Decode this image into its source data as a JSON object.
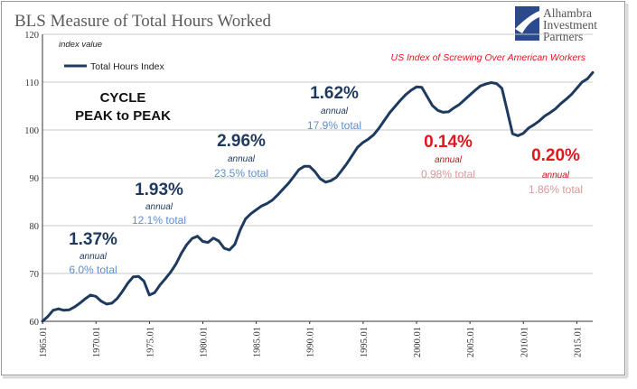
{
  "title": "BLS Measure of Total Hours Worked",
  "logo": {
    "line1": "Alhambra",
    "line2": "Investment",
    "line3": "Partners"
  },
  "subtitle_red": "US Index of Screwing Over American Workers",
  "cycle_label": {
    "line1": "CYCLE",
    "line2": "PEAK to PEAK"
  },
  "colors": {
    "line": "#1f3a5f",
    "blue": "#1f3a5f",
    "light_blue": "#5b8fd0",
    "red": "#e2161c",
    "pink": "#d99898",
    "grid": "#c8c8c8"
  },
  "annotations": [
    {
      "pct": "1.37%",
      "annual": "annual",
      "total": "6.0% total",
      "style": "blue"
    },
    {
      "pct": "1.93%",
      "annual": "annual",
      "total": "12.1% total",
      "style": "blue"
    },
    {
      "pct": "2.96%",
      "annual": "annual",
      "total": "23.5% total",
      "style": "blue"
    },
    {
      "pct": "1.62%",
      "annual": "annual",
      "total": "17.9% total",
      "style": "blue"
    },
    {
      "pct": "0.14%",
      "annual": "annual",
      "total": "0.98% total",
      "style": "red"
    },
    {
      "pct": "0.20%",
      "annual": "annual",
      "total": "1.86% total",
      "style": "red"
    }
  ],
  "chart_data": {
    "type": "line",
    "title": "BLS Measure of Total Hours Worked",
    "ylabel": "index value",
    "ylim": [
      60,
      120
    ],
    "yticks": [
      60,
      70,
      80,
      90,
      100,
      110,
      120
    ],
    "xlim": [
      1965.0,
      2016.5
    ],
    "xticks": [
      "1965.01",
      "1970.01",
      "1975.01",
      "1980.01",
      "1985.01",
      "1990.01",
      "1995.01",
      "2000.01",
      "2005.01",
      "2010.01",
      "2015.01"
    ],
    "grid": true,
    "legend_position": "top-left",
    "series": [
      {
        "name": "Total Hours Index",
        "x": [
          1965.0,
          1965.5,
          1966.0,
          1966.5,
          1967.0,
          1967.5,
          1968.0,
          1968.5,
          1969.0,
          1969.5,
          1970.0,
          1970.5,
          1971.0,
          1971.5,
          1972.0,
          1972.5,
          1973.0,
          1973.5,
          1974.0,
          1974.5,
          1975.0,
          1975.5,
          1976.0,
          1976.5,
          1977.0,
          1977.5,
          1978.0,
          1978.5,
          1979.0,
          1979.5,
          1980.0,
          1980.5,
          1981.0,
          1981.5,
          1982.0,
          1982.5,
          1983.0,
          1983.5,
          1984.0,
          1984.5,
          1985.0,
          1985.5,
          1986.0,
          1986.5,
          1987.0,
          1987.5,
          1988.0,
          1988.5,
          1989.0,
          1989.5,
          1990.0,
          1990.5,
          1991.0,
          1991.5,
          1992.0,
          1992.5,
          1993.0,
          1993.5,
          1994.0,
          1994.5,
          1995.0,
          1995.5,
          1996.0,
          1996.5,
          1997.0,
          1997.5,
          1998.0,
          1998.5,
          1999.0,
          1999.5,
          2000.0,
          2000.5,
          2001.0,
          2001.5,
          2002.0,
          2002.5,
          2003.0,
          2003.5,
          2004.0,
          2004.5,
          2005.0,
          2005.5,
          2006.0,
          2006.5,
          2007.0,
          2007.5,
          2008.0,
          2008.5,
          2009.0,
          2009.5,
          2010.0,
          2010.5,
          2011.0,
          2011.5,
          2012.0,
          2012.5,
          2013.0,
          2013.5,
          2014.0,
          2014.5,
          2015.0,
          2015.5,
          2016.0,
          2016.5
        ],
        "values": [
          60.0,
          61.0,
          62.3,
          62.6,
          62.3,
          62.4,
          63.0,
          63.8,
          64.7,
          65.5,
          65.2,
          64.2,
          63.6,
          63.8,
          64.8,
          66.3,
          68.0,
          69.3,
          69.4,
          68.4,
          65.5,
          66.0,
          67.6,
          68.9,
          70.3,
          72.0,
          74.2,
          76.0,
          77.3,
          77.8,
          76.7,
          76.5,
          77.4,
          76.8,
          75.3,
          74.9,
          76.1,
          79.1,
          81.4,
          82.5,
          83.3,
          84.1,
          84.6,
          85.3,
          86.4,
          87.6,
          88.8,
          90.2,
          91.7,
          92.4,
          92.4,
          91.3,
          89.8,
          89.1,
          89.4,
          90.1,
          91.5,
          93.0,
          94.7,
          96.4,
          97.4,
          98.1,
          99.0,
          100.4,
          102.0,
          103.6,
          104.9,
          106.2,
          107.4,
          108.3,
          109.0,
          108.9,
          107.0,
          105.1,
          104.1,
          103.7,
          103.8,
          104.6,
          105.3,
          106.3,
          107.3,
          108.3,
          109.2,
          109.6,
          109.9,
          109.7,
          108.7,
          104.0,
          99.2,
          98.8,
          99.3,
          100.4,
          101.1,
          101.9,
          102.9,
          103.6,
          104.4,
          105.5,
          106.4,
          107.4,
          108.7,
          110.0,
          110.7,
          112.0
        ]
      }
    ]
  }
}
